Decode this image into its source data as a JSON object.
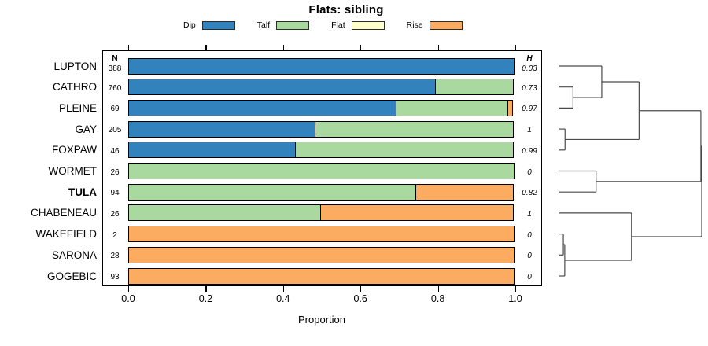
{
  "chart_data": {
    "type": "bar",
    "subtype": "horizontal_stacked_with_dendrogram",
    "title": "Flats: sibling",
    "xlabel": "Proportion",
    "xlim": [
      0,
      1
    ],
    "x_ticks": [
      "0.0",
      "0.2",
      "0.4",
      "0.6",
      "0.8",
      "1.0"
    ],
    "grid": false,
    "legend_position": "top",
    "legend": [
      {
        "label": "Dip",
        "color": "#3182bd"
      },
      {
        "label": "Talf",
        "color": "#aad9a0"
      },
      {
        "label": "Flat",
        "color": "#ffffcc"
      },
      {
        "label": "Rise",
        "color": "#fcac60"
      }
    ],
    "left_column_header": "N",
    "right_column_header": "H",
    "rows": [
      {
        "label": "LUPTON",
        "n": "388",
        "h": "0.03",
        "bold": false,
        "segments": [
          {
            "category": "Dip",
            "fraction": 1.0
          }
        ]
      },
      {
        "label": "CATHRO",
        "n": "760",
        "h": "0.73",
        "bold": false,
        "segments": [
          {
            "category": "Dip",
            "fraction": 0.795
          },
          {
            "category": "Talf",
            "fraction": 0.205
          }
        ]
      },
      {
        "label": "PLEINE",
        "n": "69",
        "h": "0.97",
        "bold": false,
        "segments": [
          {
            "category": "Dip",
            "fraction": 0.695
          },
          {
            "category": "Talf",
            "fraction": 0.291
          },
          {
            "category": "Rise",
            "fraction": 0.014
          }
        ]
      },
      {
        "label": "GAY",
        "n": "205",
        "h": "1",
        "bold": false,
        "segments": [
          {
            "category": "Dip",
            "fraction": 0.484
          },
          {
            "category": "Talf",
            "fraction": 0.516
          }
        ]
      },
      {
        "label": "FOXPAW",
        "n": "46",
        "h": "0.99",
        "bold": false,
        "segments": [
          {
            "category": "Dip",
            "fraction": 0.434
          },
          {
            "category": "Talf",
            "fraction": 0.566
          }
        ]
      },
      {
        "label": "WORMET",
        "n": "26",
        "h": "0",
        "bold": false,
        "segments": [
          {
            "category": "Talf",
            "fraction": 1.0
          }
        ]
      },
      {
        "label": "TULA",
        "n": "94",
        "h": "0.82",
        "bold": true,
        "segments": [
          {
            "category": "Talf",
            "fraction": 0.745
          },
          {
            "category": "Rise",
            "fraction": 0.255
          }
        ]
      },
      {
        "label": "CHABENEAU",
        "n": "26",
        "h": "1",
        "bold": false,
        "segments": [
          {
            "category": "Talf",
            "fraction": 0.5
          },
          {
            "category": "Rise",
            "fraction": 0.5
          }
        ]
      },
      {
        "label": "WAKEFIELD",
        "n": "2",
        "h": "0",
        "bold": false,
        "segments": [
          {
            "category": "Rise",
            "fraction": 1.0
          }
        ]
      },
      {
        "label": "SARONA",
        "n": "28",
        "h": "0",
        "bold": false,
        "segments": [
          {
            "category": "Rise",
            "fraction": 1.0
          }
        ]
      },
      {
        "label": "GOGEBIC",
        "n": "93",
        "h": "0",
        "bold": false,
        "segments": [
          {
            "category": "Rise",
            "fraction": 1.0
          }
        ]
      }
    ],
    "dendrogram": {
      "line_color": "#4a4a4a",
      "merges": [
        {
          "a": "L1",
          "b": "L2",
          "h": 0.096
        },
        {
          "a": "M1",
          "b": "L0",
          "h": 0.298
        },
        {
          "a": "L3",
          "b": "L4",
          "h": 0.04
        },
        {
          "a": "M2",
          "b": "M3",
          "h": 0.56
        },
        {
          "a": "L5",
          "b": "L6",
          "h": 0.258
        },
        {
          "a": "M4",
          "b": "M5",
          "h": 0.994
        },
        {
          "a": "L8",
          "b": "L9",
          "h": 0.028
        },
        {
          "a": "M7",
          "b": "L10",
          "h": 0.038
        },
        {
          "a": "M8",
          "b": "L7",
          "h": 0.507
        },
        {
          "a": "M6",
          "b": "M9",
          "h": 1.0
        }
      ]
    }
  }
}
